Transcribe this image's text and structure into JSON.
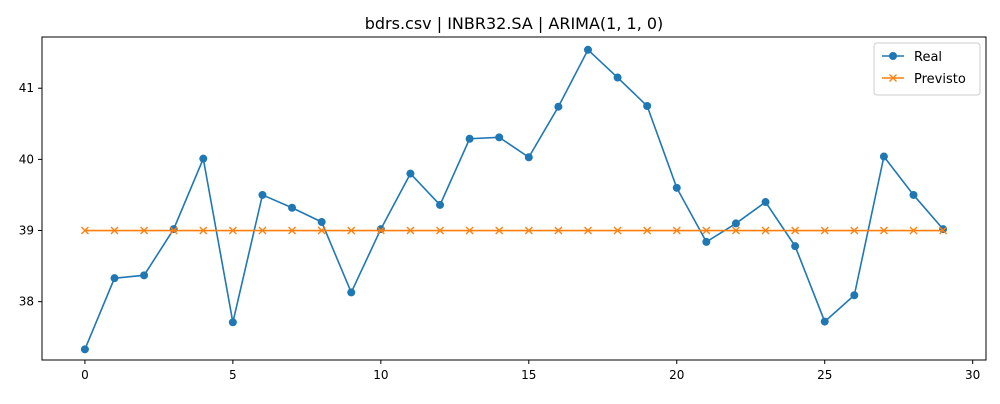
{
  "chart_data": {
    "type": "line",
    "title": "bdrs.csv | INBR32.SA | ARIMA(1, 1, 0)",
    "xlabel": "",
    "ylabel": "",
    "xlim": [
      -1.45,
      30.45
    ],
    "ylim": [
      37.18,
      41.72
    ],
    "xticks": [
      0,
      5,
      10,
      15,
      20,
      25,
      30
    ],
    "yticks": [
      38,
      39,
      40,
      41
    ],
    "grid": false,
    "legend_position": "top-right",
    "x": [
      0,
      1,
      2,
      3,
      4,
      5,
      6,
      7,
      8,
      9,
      10,
      11,
      12,
      13,
      14,
      15,
      16,
      17,
      18,
      19,
      20,
      21,
      22,
      23,
      24,
      25,
      26,
      27,
      28,
      29
    ],
    "series": [
      {
        "name": "Real",
        "color": "#1f77b4",
        "marker": "circle",
        "values": [
          37.33,
          38.33,
          38.37,
          39.02,
          40.01,
          37.71,
          39.5,
          39.32,
          39.12,
          38.13,
          39.02,
          39.8,
          39.36,
          40.29,
          40.31,
          40.03,
          40.74,
          41.54,
          41.15,
          40.75,
          39.6,
          38.84,
          39.1,
          39.4,
          38.78,
          37.72,
          38.09,
          40.04,
          39.5,
          39.02
        ]
      },
      {
        "name": "Previsto",
        "color": "#ff7f0e",
        "marker": "x",
        "values": [
          39.0,
          39.0,
          39.0,
          39.0,
          39.0,
          39.0,
          39.0,
          39.0,
          39.0,
          39.0,
          39.0,
          39.0,
          39.0,
          39.0,
          39.0,
          39.0,
          39.0,
          39.0,
          39.0,
          39.0,
          39.0,
          39.0,
          39.0,
          39.0,
          39.0,
          39.0,
          39.0,
          39.0,
          39.0,
          39.0
        ]
      }
    ]
  }
}
